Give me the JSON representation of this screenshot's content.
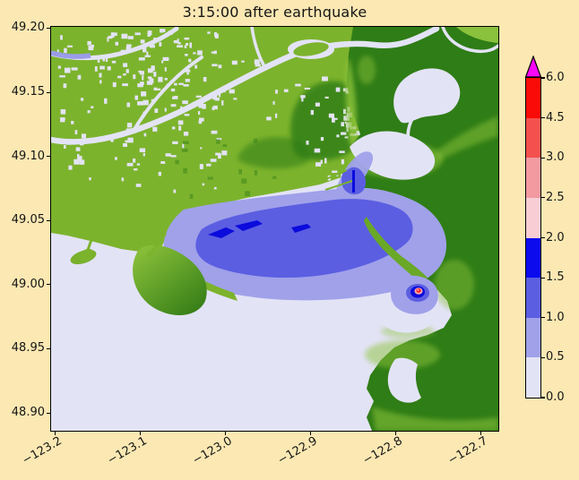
{
  "figure": {
    "title": "3:15:00 after earthquake"
  },
  "palette": {
    "figure_bg": "#fbe8b3",
    "plot_bg": "#e3e3f6",
    "text_color": "#151515",
    "water": "#e3e3f6",
    "land_low": "#7cb32d",
    "land_mid": "#8ec43a",
    "land_high": "#2f7d16",
    "flood1": "#a0a1e9",
    "flood2": "#5b5ee1",
    "flood3": "#0b0bdd",
    "pink_ring": "#f4a2aa",
    "red_hot": "#fb1a16",
    "over_magenta": "#f807f8"
  },
  "axes": {
    "x_tick_labels": [
      "−123.2",
      "−123.1",
      "−123.0",
      "−122.9",
      "−122.8",
      "−122.7"
    ],
    "y_tick_labels": [
      "49.20",
      "49.15",
      "49.10",
      "49.05",
      "49.00",
      "48.95",
      "48.90"
    ]
  },
  "colorbar": {
    "tick_labels_top_to_bottom": [
      "6.0",
      "4.5",
      "3.0",
      "2.5",
      "2.0",
      "1.5",
      "1.0",
      "0.5",
      "0.0"
    ],
    "segment_colors_top_to_bottom": [
      "#fb0b07",
      "#f4514e",
      "#f29aa0",
      "#f8cdd4",
      "#0b0bee",
      "#5b5ee1",
      "#a0a1e9",
      "#e3e3f6"
    ],
    "over_arrow_color": "#f807f8"
  },
  "chart_data": {
    "type": "heatmap",
    "title": "3:15:00 after earthquake",
    "x": {
      "ticks": [
        -123.2,
        -123.1,
        -123.0,
        -122.9,
        -122.8,
        -122.7
      ],
      "range": [
        -123.205,
        -122.679
      ]
    },
    "y": {
      "ticks": [
        49.2,
        49.15,
        49.1,
        49.05,
        49.0,
        48.95,
        48.9
      ],
      "range": [
        48.886,
        49.201
      ]
    },
    "colorbar": {
      "boundaries": [
        0.0,
        0.5,
        1.0,
        1.5,
        2.0,
        2.5,
        3.0,
        4.5,
        6.0
      ],
      "extend": "max",
      "colors_low_to_high": [
        "#e3e3f6",
        "#a0a1e9",
        "#5b5ee1",
        "#0b0bee",
        "#f8cdd4",
        "#f29aa0",
        "#f4514e",
        "#fb0b07"
      ],
      "over_color": "#f807f8"
    },
    "visual_summary": [
      "Water-depth style map of the Fraser River delta / Boundary Bay coastal region",
      "Open water and low values shown pale lavender (0-0.5)",
      "Large flooded area in Boundary Bay shaded 0.5-1.0 with a 1.0-1.5 core and small 1.5-2.0 streaks",
      "Small concentric hotspot near (-122.77, 48.99) reaching red (>4.5) at its center",
      "Low-lying delta land is yellow-green with pale urban patches and river channels; uplands are dark green"
    ]
  }
}
